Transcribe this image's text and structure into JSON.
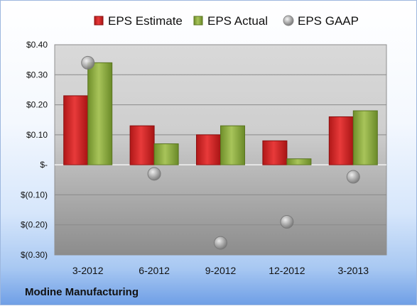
{
  "company_name": "Modine Manufacturing",
  "colors": {
    "estimate": "#d42a2a",
    "actual": "#8fae42",
    "gaap": "#a8a8a8"
  },
  "chart_data": {
    "type": "bar",
    "categories": [
      "3-2012",
      "6-2012",
      "9-2012",
      "12-2012",
      "3-2013"
    ],
    "series": [
      {
        "name": "EPS Estimate",
        "type": "bar",
        "values": [
          0.23,
          0.13,
          0.1,
          0.08,
          0.16
        ]
      },
      {
        "name": "EPS Actual",
        "type": "bar",
        "values": [
          0.34,
          0.07,
          0.13,
          0.02,
          0.18
        ]
      },
      {
        "name": "EPS GAAP",
        "type": "scatter",
        "values": [
          0.34,
          -0.03,
          -0.26,
          -0.19,
          -0.04
        ]
      }
    ],
    "ylim": [
      -0.3,
      0.4
    ],
    "yticks": [
      0.4,
      0.3,
      0.2,
      0.1,
      0,
      -0.1,
      -0.2,
      -0.3
    ],
    "ytick_labels": [
      "$0.40",
      "$0.30",
      "$0.20",
      "$0.10",
      "$-",
      "$(0.10)",
      "$(0.20)",
      "$(0.30)"
    ],
    "grid": true,
    "legend": "top"
  }
}
